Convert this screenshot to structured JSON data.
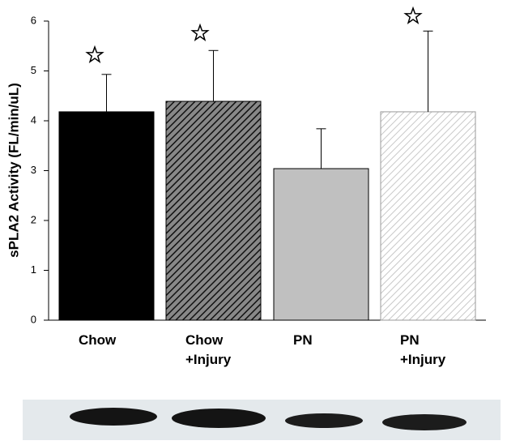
{
  "chart_data": {
    "type": "bar",
    "ylabel": "sPLA2 Activity (FL/min/uL)",
    "categories": [
      "Chow",
      "Chow\n+Injury",
      "PN",
      "PN\n+Injury"
    ],
    "values": [
      4.18,
      4.39,
      3.04,
      4.18
    ],
    "errors": [
      0.75,
      1.02,
      0.8,
      1.62
    ],
    "colors": [
      "#000000",
      "#555555",
      "#c0c0c0",
      "#c8c8c8"
    ],
    "hatch": [
      false,
      true,
      false,
      true
    ],
    "ylim": [
      0,
      6
    ],
    "yticks": [
      0,
      1,
      2,
      3,
      4,
      5,
      6
    ]
  }
}
